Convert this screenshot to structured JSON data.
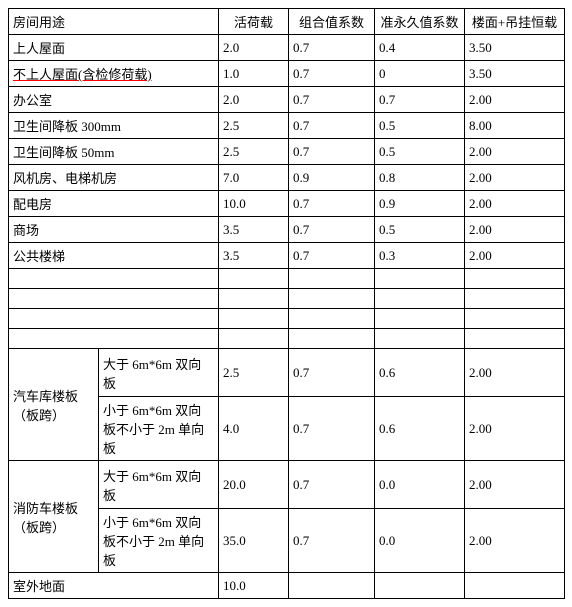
{
  "header": {
    "c1": "房间用途",
    "c3": "活荷载",
    "c4": "组合值系数",
    "c5": "准永久值系数",
    "c6": "楼面+吊挂恒载"
  },
  "rows": [
    {
      "name": "上人屋面",
      "c3": "2.0",
      "c4": "0.7",
      "c5": "0.4",
      "c6": "3.50"
    },
    {
      "name": "不上人屋面(含检修荷载)",
      "c3": "1.0",
      "c4": "0.7",
      "c5": "0",
      "c6": "3.50",
      "strike": true
    },
    {
      "name": "办公室",
      "c3": "2.0",
      "c4": "0.7",
      "c5": "0.7",
      "c6": "2.00"
    },
    {
      "name": "卫生间降板 300mm",
      "c3": "2.5",
      "c4": "0.7",
      "c5": "0.5",
      "c6": "8.00"
    },
    {
      "name": "卫生间降板 50mm",
      "c3": "2.5",
      "c4": "0.7",
      "c5": "0.5",
      "c6": "2.00"
    },
    {
      "name": "风机房、电梯机房",
      "c3": "7.0",
      "c4": "0.9",
      "c5": "0.8",
      "c6": "2.00"
    },
    {
      "name": "配电房",
      "c3": "10.0",
      "c4": "0.7",
      "c5": "0.9",
      "c6": "2.00"
    },
    {
      "name": "商场",
      "c3": "3.5",
      "c4": "0.7",
      "c5": "0.5",
      "c6": "2.00"
    },
    {
      "name": "公共楼梯",
      "c3": "3.5",
      "c4": "0.7",
      "c5": "0.3",
      "c6": "2.00"
    }
  ],
  "group1": {
    "title": "汽车库楼板（板跨）",
    "sub1": {
      "desc": "大于 6m*6m 双向板",
      "c3": "2.5",
      "c4": "0.7",
      "c5": "0.6",
      "c6": "2.00"
    },
    "sub2": {
      "desc": "小于 6m*6m 双向板不小于 2m 单向板",
      "c3": "4.0",
      "c4": "0.7",
      "c5": "0.6",
      "c6": "2.00"
    }
  },
  "group2": {
    "title": "消防车楼板（板跨）",
    "sub1": {
      "desc": "大于 6m*6m 双向板",
      "c3": "20.0",
      "c4": "0.7",
      "c5": "0.0",
      "c6": "2.00"
    },
    "sub2": {
      "desc": "小于 6m*6m 双向板不小于 2m 单向板",
      "c3": "35.0",
      "c4": "0.7",
      "c5": "0.0",
      "c6": "2.00"
    }
  },
  "lastrow": {
    "name": "室外地面",
    "c3": "10.0"
  }
}
